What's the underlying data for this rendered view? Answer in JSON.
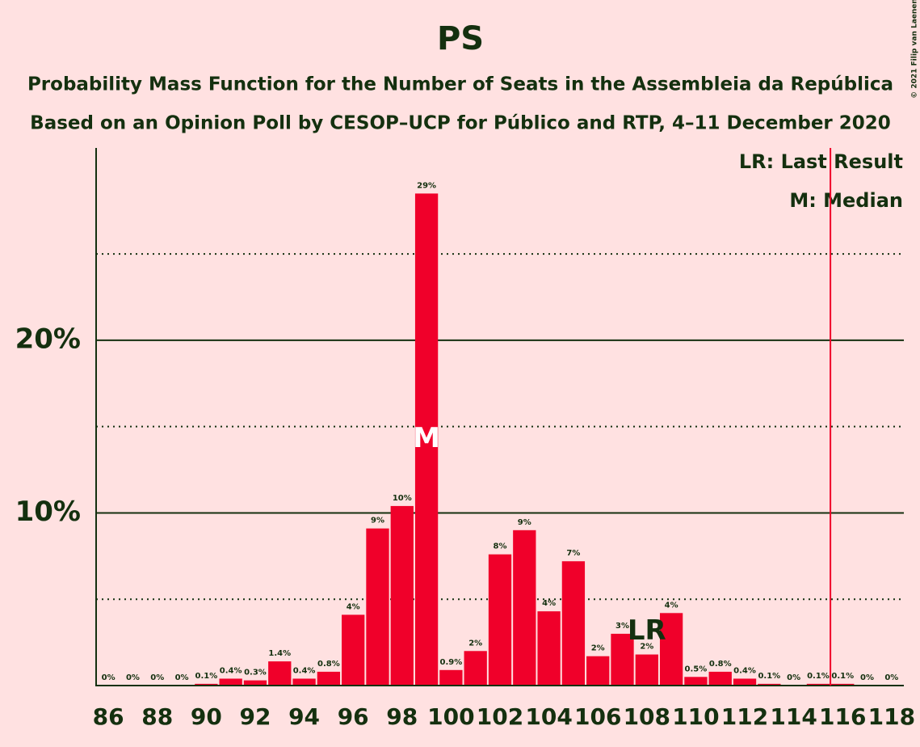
{
  "chart_data": {
    "type": "bar",
    "title": "PS",
    "subtitle": "Probability Mass Function for the Number of Seats in the Assembleia da República",
    "subtitle2": "Based on an Opinion Poll by CESOP–UCP for Público and RTP, 4–11 December 2020",
    "copyright": "© 2021 Filip van Laenen",
    "color": "#f0002a",
    "x": [
      86,
      87,
      88,
      89,
      90,
      91,
      92,
      93,
      94,
      95,
      96,
      97,
      98,
      99,
      100,
      101,
      102,
      103,
      104,
      105,
      106,
      107,
      108,
      109,
      110,
      111,
      112,
      113,
      114,
      115,
      116,
      117,
      118
    ],
    "values": [
      0,
      0,
      0,
      0,
      0.1,
      0.4,
      0.3,
      1.4,
      0.4,
      0.8,
      4.1,
      9.1,
      10.4,
      28.5,
      0.9,
      2.0,
      7.6,
      9.0,
      4.3,
      7.2,
      1.7,
      3.0,
      1.8,
      4.2,
      0.5,
      0.8,
      0.4,
      0.1,
      0,
      0.1,
      0.1,
      0,
      0
    ],
    "value_labels": [
      "0%",
      "0%",
      "0%",
      "0%",
      "0.1%",
      "0.4%",
      "0.3%",
      "1.4%",
      "0.4%",
      "0.8%",
      "4%",
      "9%",
      "10%",
      "29%",
      "0.9%",
      "2%",
      "8%",
      "9%",
      "4%",
      "7%",
      "2%",
      "3%",
      "2%",
      "4%",
      "0.5%",
      "0.8%",
      "0.4%",
      "0.1%",
      "0%",
      "0.1%",
      "0.1%",
      "0%",
      "0%"
    ],
    "xlim": [
      85.5,
      118.5
    ],
    "xticks": [
      86,
      88,
      90,
      92,
      94,
      96,
      98,
      100,
      102,
      104,
      106,
      108,
      110,
      112,
      114,
      116,
      118
    ],
    "ylim": [
      0,
      31
    ],
    "yticks": [
      {
        "value": 10,
        "label": "10%"
      },
      {
        "value": 20,
        "label": "20%"
      }
    ],
    "minor_yticks": [
      5,
      15,
      25
    ],
    "median": 99,
    "median_marker": "M",
    "last_result": 108,
    "last_result_marker": "LR",
    "majority_line": 115.5,
    "legend": [
      "LR: Last Result",
      "M: Median"
    ]
  }
}
